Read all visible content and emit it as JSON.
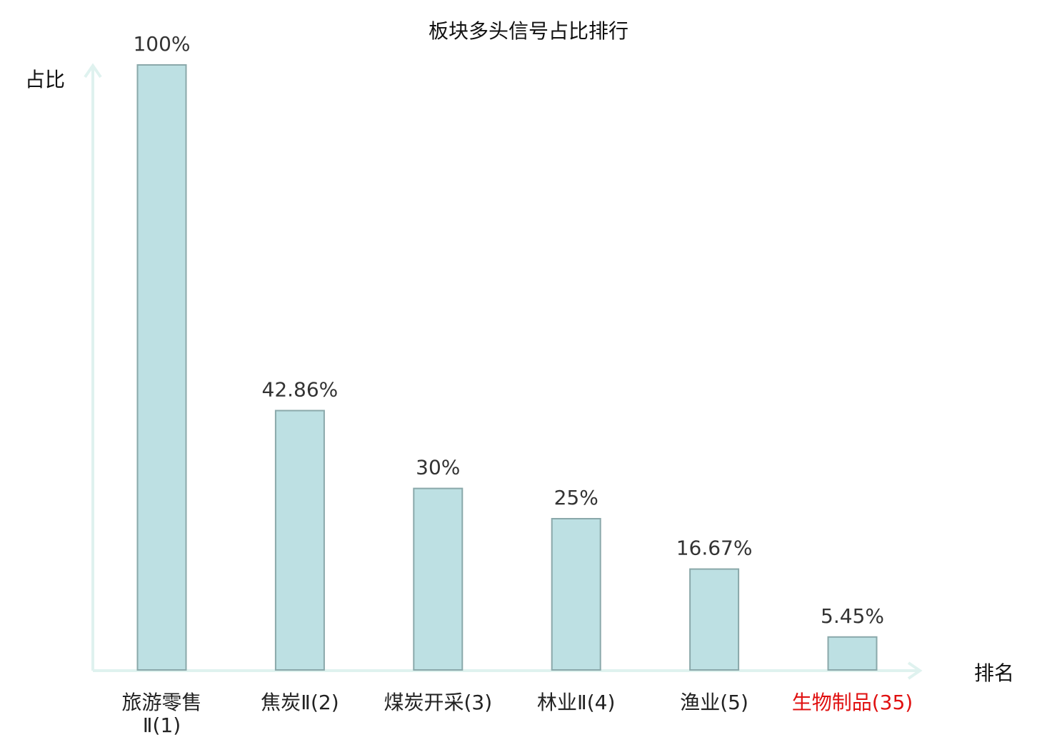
{
  "chart_data": {
    "type": "bar",
    "title": "板块多头信号占比排行",
    "ylabel": "占比",
    "xlabel": "排名",
    "categories": [
      "旅游零售Ⅱ(1)",
      "焦炭Ⅱ(2)",
      "煤炭开采(3)",
      "林业Ⅱ(4)",
      "渔业(5)",
      "生物制品(35)"
    ],
    "category_lines": [
      [
        "旅游零售",
        "Ⅱ(1)"
      ],
      [
        "焦炭Ⅱ(2)"
      ],
      [
        "煤炭开采(3)"
      ],
      [
        "林业Ⅱ(4)"
      ],
      [
        "渔业(5)"
      ],
      [
        "生物制品(35)"
      ]
    ],
    "values": [
      100,
      42.86,
      30,
      25,
      16.67,
      5.45
    ],
    "value_labels": [
      "100%",
      "42.86%",
      "30%",
      "25%",
      "16.67%",
      "5.45%"
    ],
    "highlight_index": 5,
    "ylim": [
      0,
      100
    ],
    "grid": false,
    "colors": {
      "bar_fill": "#bde0e3",
      "bar_stroke": "#8aa8aa",
      "axis": "#dff2ef",
      "highlight_text": "#e01010"
    }
  }
}
